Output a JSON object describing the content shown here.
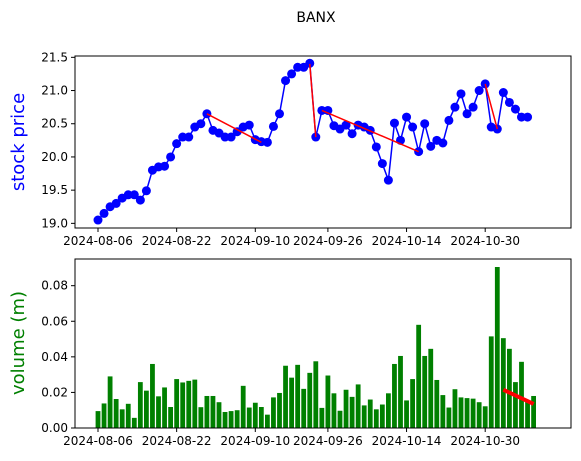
{
  "chart_data": [
    {
      "type": "line",
      "title": "BANX",
      "xlabel": "",
      "ylabel": "stock price",
      "ylabel_color": "#0000ff",
      "ylim": [
        18.93,
        21.52
      ],
      "yticks": [
        "19.0",
        "19.5",
        "20.0",
        "20.5",
        "21.0",
        "21.5"
      ],
      "xticks": [
        "2024-08-06",
        "2024-08-22",
        "2024-09-10",
        "2024-09-26",
        "2024-10-14",
        "2024-10-30"
      ],
      "series": [
        {
          "color": "#0000ff",
          "marker": "circle",
          "x": [
            0,
            1,
            2,
            3,
            4,
            5,
            6,
            7,
            8,
            9,
            10,
            11,
            12,
            13,
            14,
            15,
            16,
            17,
            18,
            19,
            20,
            21,
            22,
            23,
            24,
            25,
            26,
            27,
            28,
            29,
            30,
            31,
            32,
            33,
            34,
            35,
            36,
            37,
            38,
            39,
            40,
            41,
            42,
            43,
            44,
            45,
            46,
            47,
            48,
            49,
            50,
            51,
            52,
            53,
            54,
            55,
            56,
            57,
            58,
            59,
            60,
            61,
            62,
            63,
            64,
            65,
            66,
            67,
            68,
            69,
            70,
            71,
            72,
            73,
            74,
            75
          ],
          "values": [
            19.05,
            19.15,
            19.25,
            19.3,
            19.38,
            19.43,
            19.43,
            19.35,
            19.49,
            19.8,
            19.85,
            19.86,
            20.0,
            20.2,
            20.3,
            20.3,
            20.45,
            20.5,
            20.65,
            20.4,
            20.36,
            20.3,
            20.3,
            20.38,
            20.45,
            20.48,
            20.26,
            20.23,
            20.22,
            20.46,
            20.65,
            21.15,
            21.25,
            21.35,
            21.35,
            21.41,
            20.3,
            20.7,
            20.7,
            20.47,
            20.42,
            20.48,
            20.35,
            20.48,
            20.45,
            20.4,
            20.15,
            19.9,
            19.65,
            20.51,
            20.25,
            20.6,
            20.45,
            20.08,
            20.5,
            20.16,
            20.25,
            20.21,
            20.55,
            20.75,
            20.95,
            20.65,
            20.75,
            21.0,
            21.1,
            20.45,
            20.42,
            20.97,
            20.82,
            20.72,
            20.6,
            20.6,
            20.6,
            20.6,
            20.6,
            20.6
          ]
        }
      ],
      "trend_segments": [
        {
          "color": "#ff0000",
          "x": [
            18,
            27
          ],
          "values": [
            20.65,
            20.22
          ]
        },
        {
          "color": "#ff0000",
          "x": [
            35,
            36
          ],
          "values": [
            21.4,
            20.3
          ]
        },
        {
          "color": "#ff0000",
          "x": [
            37,
            53
          ],
          "values": [
            20.7,
            20.08
          ]
        },
        {
          "color": "#ff0000",
          "x": [
            64,
            66
          ],
          "values": [
            21.1,
            20.42
          ]
        }
      ],
      "grid": false
    },
    {
      "type": "bar",
      "title": "",
      "xlabel": "",
      "ylabel": "volume (m)",
      "ylabel_color": "#008000",
      "ylim": [
        0,
        0.095
      ],
      "yticks": [
        "0.00",
        "0.02",
        "0.04",
        "0.06",
        "0.08"
      ],
      "xticks": [
        "2024-08-06",
        "2024-08-22",
        "2024-09-10",
        "2024-09-26",
        "2024-10-14",
        "2024-10-30"
      ],
      "series": [
        {
          "color": "#008000",
          "values": [
            0.0095,
            0.0138,
            0.029,
            0.0163,
            0.0105,
            0.0136,
            0.0057,
            0.0258,
            0.021,
            0.036,
            0.0178,
            0.0228,
            0.0118,
            0.0275,
            0.0256,
            0.0265,
            0.0272,
            0.0117,
            0.018,
            0.018,
            0.0145,
            0.009,
            0.0095,
            0.01,
            0.0237,
            0.0115,
            0.0142,
            0.0118,
            0.0075,
            0.0172,
            0.0197,
            0.035,
            0.0283,
            0.0355,
            0.022,
            0.031,
            0.0375,
            0.0113,
            0.0295,
            0.0195,
            0.0097,
            0.0215,
            0.0175,
            0.0245,
            0.0127,
            0.016,
            0.0105,
            0.0132,
            0.0195,
            0.036,
            0.0405,
            0.0155,
            0.0275,
            0.058,
            0.0405,
            0.0445,
            0.027,
            0.0185,
            0.0115,
            0.0218,
            0.0172,
            0.0168,
            0.0165,
            0.0145,
            0.0122,
            0.0515,
            0.0905,
            0.0505,
            0.0445,
            0.0258,
            0.0372,
            0.0155,
            0.018
          ]
        }
      ],
      "trend_segments": [
        {
          "color": "#ff0000",
          "x": [
            67,
            72
          ],
          "values": [
            0.0215,
            0.0135
          ]
        }
      ],
      "grid": false
    }
  ]
}
